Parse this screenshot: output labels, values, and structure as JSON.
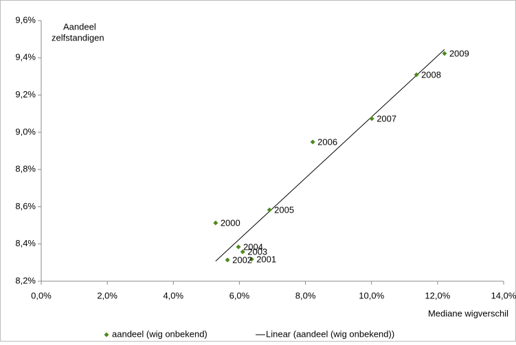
{
  "chart_data": {
    "type": "scatter",
    "ylabel": [
      "Aandeel",
      "zelfstandigen"
    ],
    "xlabel": "Mediane wigverschil",
    "series": [
      {
        "name": "aandeel (wig onbekend)",
        "color": "#4e8a1e",
        "x": [
          5.28,
          6.37,
          5.64,
          6.1,
          5.97,
          6.91,
          8.22,
          10.01,
          11.36,
          12.21
        ],
        "values": [
          8.513,
          8.318,
          8.314,
          8.358,
          8.384,
          8.583,
          8.948,
          9.073,
          9.309,
          9.423
        ],
        "labels": [
          "2000",
          "2001",
          "2002",
          "2003",
          "2004",
          "2005",
          "2006",
          "2007",
          "2008",
          "2009"
        ]
      }
    ],
    "trendline": {
      "name": "Linear (aandeel (wig onbekend))",
      "color": "#000000"
    },
    "xlim": [
      0,
      14
    ],
    "xticks": [
      {
        "value": 0,
        "label": "0,0%"
      },
      {
        "value": 2,
        "label": "2,0%"
      },
      {
        "value": 4,
        "label": "4,0%"
      },
      {
        "value": 6,
        "label": "6,0%"
      },
      {
        "value": 8,
        "label": "8,0%"
      },
      {
        "value": 10,
        "label": "10,0%"
      },
      {
        "value": 12,
        "label": "12,0%"
      },
      {
        "value": 14,
        "label": "14,0%"
      }
    ],
    "ylim": [
      8.2,
      9.6
    ],
    "yticks": [
      {
        "value": 8.2,
        "label": "8,2%"
      },
      {
        "value": 8.4,
        "label": "8,4%"
      },
      {
        "value": 8.6,
        "label": "8,6%"
      },
      {
        "value": 8.8,
        "label": "8,8%"
      },
      {
        "value": 9.0,
        "label": "9,0%"
      },
      {
        "value": 9.2,
        "label": "9,2%"
      },
      {
        "value": 9.4,
        "label": "9,4%"
      },
      {
        "value": 9.6,
        "label": "9,6%"
      }
    ],
    "grid": false
  }
}
